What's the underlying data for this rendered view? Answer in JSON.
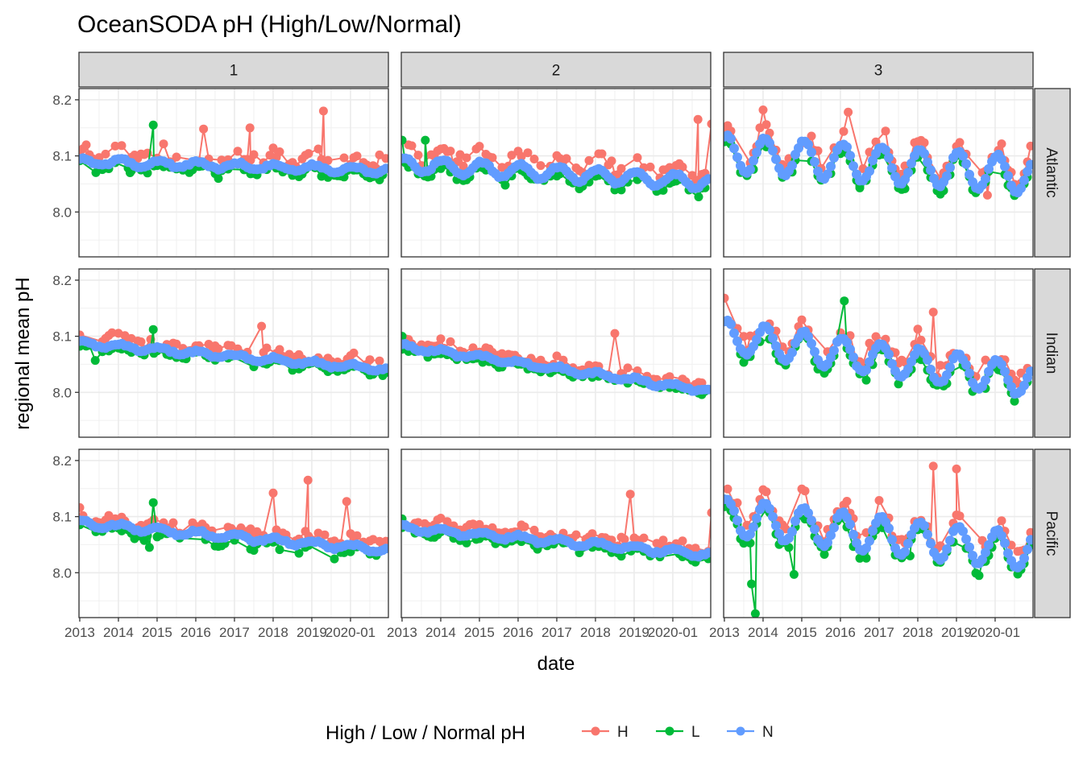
{
  "chart_data": {
    "type": "line",
    "title": "OceanSODA pH (High/Low/Normal)",
    "xlabel": "date",
    "ylabel": "regional mean pH",
    "legend": {
      "title": "High / Low / Normal pH",
      "position": "bottom",
      "entries": [
        {
          "key": "H",
          "color": "#F8766D"
        },
        {
          "key": "L",
          "color": "#00BA38"
        },
        {
          "key": "N",
          "color": "#619CFF"
        }
      ]
    },
    "facet_columns": [
      "1",
      "2",
      "3"
    ],
    "facet_rows": [
      "Atlantic",
      "Indian",
      "Pacific"
    ],
    "ylim": [
      7.92,
      8.22
    ],
    "y_ticks": [
      8.0,
      8.1,
      8.2
    ],
    "y_tick_labels": [
      "8.0",
      "8.1",
      "8.2"
    ],
    "x_range_years": [
      2013.0,
      2021.0
    ],
    "x_ticks_years": [
      2013,
      2014,
      2015,
      2016,
      2017,
      2018,
      2019,
      2020
    ],
    "x_tick_labels": [
      "2013",
      "2014",
      "2015",
      "2016",
      "2017",
      "2018",
      "2019",
      "2020-01"
    ],
    "panels": [
      {
        "column": "1",
        "row": "Atlantic",
        "base": 8.09,
        "amp": 0.006,
        "h_off": 0.018,
        "l_off": -0.008,
        "h_noise": 0.018,
        "l_noise": 0.008,
        "trend": -0.002,
        "extra_points": [
          {
            "series": "H",
            "x": 2019.3,
            "y": 8.18
          },
          {
            "series": "L",
            "x": 2014.9,
            "y": 8.155
          },
          {
            "series": "L",
            "x": 2014.3,
            "y": 8.07
          },
          {
            "series": "H",
            "x": 2016.2,
            "y": 8.148
          },
          {
            "series": "H",
            "x": 2017.4,
            "y": 8.15
          }
        ]
      },
      {
        "column": "2",
        "row": "Atlantic",
        "base": 8.085,
        "amp": 0.012,
        "h_off": 0.02,
        "l_off": -0.01,
        "h_noise": 0.015,
        "l_noise": 0.006,
        "trend": -0.004,
        "extra_points": [
          {
            "series": "H",
            "x": 2020.65,
            "y": 8.165
          },
          {
            "series": "H",
            "x": 2021.0,
            "y": 8.157
          },
          {
            "series": "L",
            "x": 2013.0,
            "y": 8.128
          },
          {
            "series": "L",
            "x": 2013.6,
            "y": 8.128
          }
        ]
      },
      {
        "column": "3",
        "row": "Atlantic",
        "base": 8.105,
        "amp": 0.032,
        "h_off": 0.02,
        "l_off": -0.01,
        "h_noise": 0.018,
        "l_noise": 0.008,
        "trend": -0.005,
        "extra_points": [
          {
            "series": "H",
            "x": 2014.0,
            "y": 8.182
          },
          {
            "series": "H",
            "x": 2019.8,
            "y": 8.03
          },
          {
            "series": "L",
            "x": 2016.5,
            "y": 8.043
          },
          {
            "series": "H",
            "x": 2016.2,
            "y": 8.178
          }
        ]
      },
      {
        "column": "1",
        "row": "Indian",
        "base": 8.088,
        "amp": 0.004,
        "h_off": 0.014,
        "l_off": -0.006,
        "h_noise": 0.01,
        "l_noise": 0.005,
        "trend": -0.006,
        "extra_points": [
          {
            "series": "L",
            "x": 2013.4,
            "y": 8.057
          },
          {
            "series": "H",
            "x": 2017.7,
            "y": 8.118
          },
          {
            "series": "L",
            "x": 2014.9,
            "y": 8.112
          }
        ]
      },
      {
        "column": "2",
        "row": "Indian",
        "base": 8.082,
        "amp": 0.004,
        "h_off": 0.012,
        "l_off": -0.006,
        "h_noise": 0.01,
        "l_noise": 0.004,
        "trend": -0.01,
        "extra_points": [
          {
            "series": "L",
            "x": 2013.0,
            "y": 8.1
          },
          {
            "series": "H",
            "x": 2018.5,
            "y": 8.105
          }
        ]
      },
      {
        "column": "3",
        "row": "Indian",
        "base": 8.1,
        "amp": 0.028,
        "h_off": 0.022,
        "l_off": -0.01,
        "h_noise": 0.015,
        "l_noise": 0.008,
        "trend": -0.01,
        "extra_points": [
          {
            "series": "L",
            "x": 2016.1,
            "y": 8.163
          },
          {
            "series": "H",
            "x": 2013.0,
            "y": 8.168
          },
          {
            "series": "H",
            "x": 2018.4,
            "y": 8.143
          }
        ]
      },
      {
        "column": "1",
        "row": "Pacific",
        "base": 8.088,
        "amp": 0.005,
        "h_off": 0.012,
        "l_off": -0.01,
        "h_noise": 0.015,
        "l_noise": 0.008,
        "trend": -0.006,
        "extra_points": [
          {
            "series": "H",
            "x": 2018.9,
            "y": 8.165
          },
          {
            "series": "L",
            "x": 2014.8,
            "y": 8.045
          },
          {
            "series": "L",
            "x": 2014.9,
            "y": 8.125
          },
          {
            "series": "H",
            "x": 2019.9,
            "y": 8.127
          },
          {
            "series": "H",
            "x": 2018.0,
            "y": 8.142
          }
        ]
      },
      {
        "column": "2",
        "row": "Pacific",
        "base": 8.08,
        "amp": 0.005,
        "h_off": 0.014,
        "l_off": -0.008,
        "h_noise": 0.01,
        "l_noise": 0.004,
        "trend": -0.006,
        "extra_points": [
          {
            "series": "H",
            "x": 2018.9,
            "y": 8.14
          },
          {
            "series": "L",
            "x": 2013.0,
            "y": 8.096
          },
          {
            "series": "H",
            "x": 2021.0,
            "y": 8.107
          }
        ]
      },
      {
        "column": "3",
        "row": "Pacific",
        "base": 8.1,
        "amp": 0.032,
        "h_off": 0.022,
        "l_off": -0.012,
        "h_noise": 0.018,
        "l_noise": 0.01,
        "trend": -0.008,
        "extra_points": [
          {
            "series": "L",
            "x": 2013.7,
            "y": 7.98
          },
          {
            "series": "L",
            "x": 2013.8,
            "y": 7.927
          },
          {
            "series": "L",
            "x": 2014.8,
            "y": 7.997
          },
          {
            "series": "H",
            "x": 2018.4,
            "y": 8.19
          },
          {
            "series": "H",
            "x": 2019.0,
            "y": 8.185
          },
          {
            "series": "L",
            "x": 2017.8,
            "y": 8.03
          },
          {
            "series": "L",
            "x": 2016.6,
            "y": 8.033
          }
        ]
      }
    ]
  }
}
